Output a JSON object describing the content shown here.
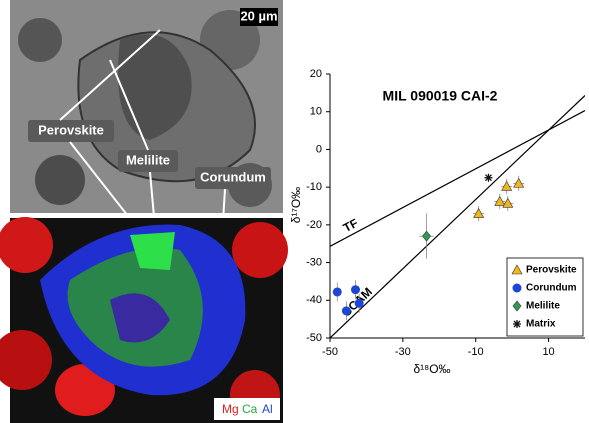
{
  "images": {
    "scale_bar": "20 µm",
    "labels": [
      "Perovskite",
      "Melilite",
      "Corundum"
    ],
    "channels": [
      "Mg",
      "Ca",
      "Al"
    ]
  },
  "chart_data": {
    "type": "scatter",
    "title": "MIL 090019 CAI-2",
    "x_label": "δ¹⁸O‰",
    "y_label": "δ¹⁷O‰",
    "xlim": [
      -50,
      20
    ],
    "ylim": [
      -50,
      20
    ],
    "xticks": [
      -50,
      -30,
      -10,
      10
    ],
    "yticks": [
      20,
      10,
      0,
      -10,
      -20,
      -30,
      -40,
      -50
    ],
    "legend": "lower right",
    "reference_lines": [
      {
        "name": "TF",
        "x": [
          -50,
          20
        ],
        "y": [
          -25.7,
          10.3
        ]
      },
      {
        "name": "CCAM",
        "x": [
          -50,
          20
        ],
        "y": [
          -50,
          14.3
        ]
      }
    ],
    "series": [
      {
        "name": "Perovskite",
        "color": "#f2b51c",
        "marker": "triangle",
        "x": [
          -9.2,
          -3.4,
          -1.5,
          -1.2,
          1.8
        ],
        "values": [
          -17,
          -13.8,
          -9.8,
          -14.3,
          -9
        ],
        "xerr": [
          1.5,
          1.5,
          1.5,
          1.5,
          1.5
        ],
        "yerr": [
          2,
          2,
          2,
          2,
          2
        ]
      },
      {
        "name": "Corundum",
        "color": "#1d45d6",
        "marker": "circle",
        "x": [
          -48,
          -45.5,
          -43,
          -42
        ],
        "values": [
          -37.8,
          -42.8,
          -37.2,
          -40.8
        ],
        "xerr": [
          1,
          1,
          1,
          1
        ],
        "yerr": [
          2.5,
          2.5,
          2.5,
          2.5
        ]
      },
      {
        "name": "Melilite",
        "color": "#2e9a55",
        "marker": "diamond",
        "x": [
          -23.5
        ],
        "values": [
          -23
        ],
        "xerr": [
          2
        ],
        "yerr": [
          6
        ]
      },
      {
        "name": "Matrix",
        "color": "#111111",
        "marker": "star",
        "x": [
          -6.5
        ],
        "values": [
          -7.5
        ],
        "xerr": [
          1
        ],
        "yerr": [
          1
        ]
      }
    ]
  }
}
